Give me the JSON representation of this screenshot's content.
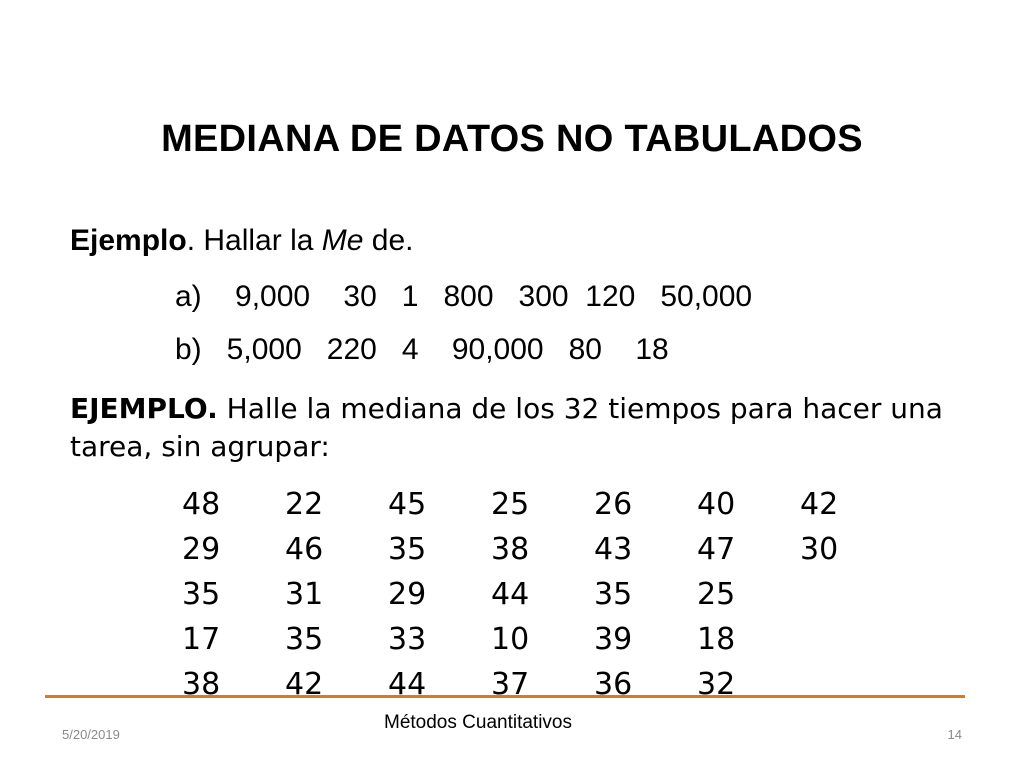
{
  "slide": {
    "title": "MEDIANA DE DATOS NO TABULADOS",
    "example1": {
      "label_bold": "Ejemplo",
      "text_before": ". Hallar  la ",
      "text_italic": "Me",
      "text_after": " de.",
      "item_a": "a)    9,000    30   1   800   300  120   50,000",
      "item_b": "b)   5,000   220   4    90,000   80    18"
    },
    "example2": {
      "label_bold": "EJEMPLO.",
      "text": " Halle la mediana de los 32 tiempos para hacer una tarea,  sin agrupar:"
    },
    "data_rows": [
      [
        "48",
        "22",
        "45",
        "25",
        "26",
        "40",
        "42"
      ],
      [
        "29",
        "46",
        "35",
        "38",
        "43",
        "47",
        "30"
      ],
      [
        "35",
        "31",
        "29",
        "44",
        "35",
        "25"
      ],
      [
        "17",
        "35",
        "33",
        "10",
        "39",
        "18"
      ],
      [
        "38",
        "42",
        "44",
        "37",
        "36",
        "32"
      ]
    ]
  },
  "footer": {
    "date": "5/20/2019",
    "center": "Métodos Cuantitativos",
    "page": "14"
  },
  "colors": {
    "footer_rule": "#d97c1c",
    "footer_small_text": "#8a8a8a"
  }
}
